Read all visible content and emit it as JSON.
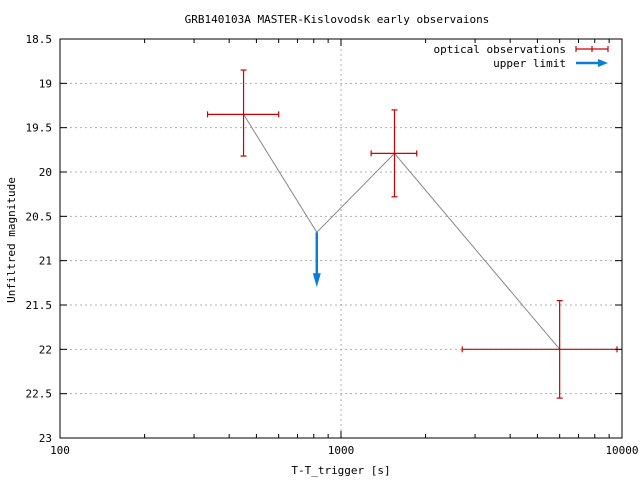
{
  "chart_data": {
    "type": "scatter",
    "title": "GRB140103A MASTER-Kislovodsk early observaions",
    "xlabel": "T-T_trigger [s]",
    "ylabel": "Unfiltred magnitude",
    "x_scale": "log",
    "xlim": [
      100,
      10000
    ],
    "ylim": [
      23,
      18.5
    ],
    "y_inverted": true,
    "x_ticks": [
      100,
      1000,
      10000
    ],
    "x_tick_labels": [
      "100",
      "1000",
      "10000"
    ],
    "y_ticks": [
      18.5,
      19,
      19.5,
      20,
      20.5,
      21,
      21.5,
      22,
      22.5,
      23
    ],
    "y_tick_labels": [
      "18.5",
      "19",
      "19.5",
      "20",
      "20.5",
      "21",
      "21.5",
      "22",
      "22.5",
      "23"
    ],
    "grid": true,
    "legend_position": "top-right",
    "legend": [
      {
        "label": "optical observations",
        "color": "#cc0000",
        "marker": "errorbar"
      },
      {
        "label": "upper limit",
        "color": "#0a7fd9",
        "marker": "arrow"
      }
    ],
    "series": [
      {
        "name": "optical observations",
        "color": "#cc0000",
        "points": [
          {
            "x": 450,
            "xerr": [
              335,
              600
            ],
            "y": 19.35,
            "yerr": [
              18.85,
              19.82
            ]
          },
          {
            "x": 1550,
            "xerr": [
              1280,
              1860
            ],
            "y": 19.79,
            "yerr": [
              19.3,
              20.28
            ]
          },
          {
            "x": 6000,
            "xerr": [
              2700,
              9600
            ],
            "y": 22.0,
            "yerr": [
              21.45,
              22.55
            ]
          }
        ]
      },
      {
        "name": "upper limit",
        "color": "#0a7fd9",
        "points": [
          {
            "x": 820,
            "y": 20.68,
            "arrow_to": 21.3
          }
        ]
      }
    ],
    "connecting_line": {
      "color": "#888888",
      "points": [
        [
          450,
          19.35
        ],
        [
          820,
          20.68
        ],
        [
          1550,
          19.79
        ],
        [
          6000,
          22.0
        ]
      ]
    }
  }
}
